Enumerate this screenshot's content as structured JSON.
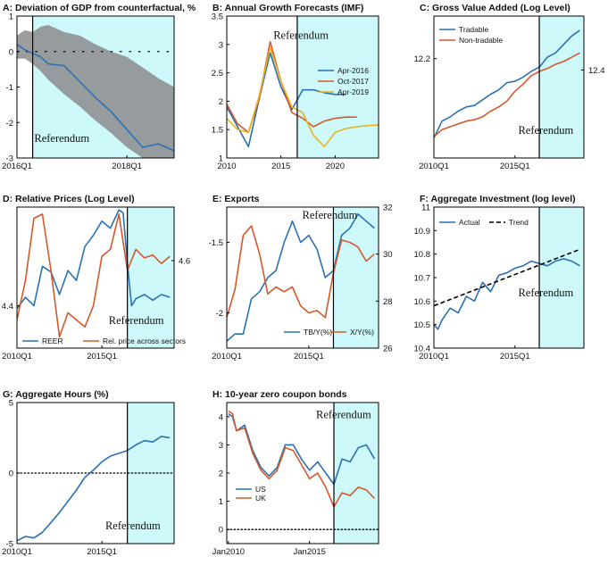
{
  "figure": {
    "colors": {
      "blue": "#2a71b5",
      "orange": "#d4592a",
      "yellow": "#e7b41f",
      "shade": "#cdf9fb",
      "band": "#8c8c8c",
      "black": "#000000"
    }
  },
  "chart_data": [
    {
      "type": "area",
      "title": "A: Deviation of GDP from counterfactual, %",
      "xlim": [
        0,
        10
      ],
      "ylim": [
        -3,
        1
      ],
      "yticks": [
        1,
        0,
        -1,
        -2,
        -3
      ],
      "xticks": [
        {
          "x": 0,
          "label": "2016Q1"
        },
        {
          "x": 7,
          "label": "2018Q1"
        }
      ],
      "shaded": [
        1,
        10
      ],
      "vline": 1,
      "hline": 0,
      "hline_style": "dotted-sparse",
      "annotations": [
        {
          "text": "Referendum",
          "x": 1.1,
          "y": -2.55
        }
      ],
      "band": {
        "x": [
          0,
          0.5,
          1,
          1.5,
          2,
          3,
          4,
          5,
          6,
          7,
          8,
          9,
          10
        ],
        "upper": [
          0.45,
          0.6,
          0.55,
          0.7,
          0.75,
          0.55,
          0.45,
          0.2,
          0.0,
          -0.15,
          -0.45,
          -0.75,
          -1.0
        ],
        "lower": [
          -0.2,
          -0.2,
          -0.35,
          -0.55,
          -0.8,
          -1.2,
          -1.55,
          -1.95,
          -2.3,
          -2.7,
          -3.0,
          -3.0,
          -3.0
        ]
      },
      "series": [
        {
          "color": "#2a71b5",
          "x": [
            0,
            0.5,
            1,
            1.5,
            2,
            3,
            4,
            5,
            6,
            7,
            8,
            9,
            10
          ],
          "y": [
            0.2,
            0.05,
            -0.05,
            -0.15,
            -0.35,
            -0.4,
            -0.85,
            -1.3,
            -1.7,
            -2.2,
            -2.7,
            -2.6,
            -2.8
          ]
        }
      ]
    },
    {
      "type": "line",
      "title": "B: Annual Growth Forecasts (IMF)",
      "xlim": [
        2010,
        2024
      ],
      "ylim": [
        1,
        3.5
      ],
      "yticks": [
        3.5,
        3,
        2.5,
        2,
        1.5,
        1
      ],
      "xticks": [
        {
          "x": 2010,
          "label": "2010"
        },
        {
          "x": 2015,
          "label": "2015"
        },
        {
          "x": 2020,
          "label": "2020"
        }
      ],
      "shaded": [
        2016.5,
        2024
      ],
      "vline": 2016.5,
      "annotations": [
        {
          "text": "Referendum",
          "x": 2014.3,
          "y": 3.1
        }
      ],
      "legend": {
        "position": "top-right"
      },
      "series": [
        {
          "name": "Apr-2016",
          "color": "#2a71b5",
          "x": [
            2010,
            2011,
            2012,
            2013,
            2014,
            2015,
            2016,
            2017,
            2018,
            2019,
            2020,
            2021
          ],
          "y": [
            1.9,
            1.55,
            1.2,
            2.05,
            2.85,
            2.25,
            1.85,
            2.2,
            2.2,
            2.15,
            2.12,
            2.12
          ]
        },
        {
          "name": "Oct-2017",
          "color": "#d4592a",
          "x": [
            2010,
            2011,
            2012,
            2013,
            2014,
            2015,
            2016,
            2017,
            2018,
            2019,
            2020,
            2021,
            2022
          ],
          "y": [
            1.95,
            1.6,
            1.45,
            2.05,
            3.05,
            2.35,
            1.8,
            1.7,
            1.55,
            1.65,
            1.7,
            1.72,
            1.72
          ]
        },
        {
          "name": "Apr-2019",
          "color": "#e7b41f",
          "x": [
            2010,
            2011,
            2012,
            2013,
            2014,
            2015,
            2016,
            2017,
            2018,
            2019,
            2020,
            2021,
            2022,
            2023,
            2024
          ],
          "y": [
            1.7,
            1.5,
            1.45,
            2.1,
            2.95,
            2.35,
            1.9,
            1.8,
            1.4,
            1.2,
            1.45,
            1.52,
            1.55,
            1.57,
            1.58
          ]
        }
      ]
    },
    {
      "type": "line",
      "title": "C: Gross Value Added (Log Level)",
      "xlim": [
        2010,
        2019.25
      ],
      "ylim": [
        0,
        1
      ],
      "yticks_left": [
        {
          "y": 0.7,
          "label": "12.2"
        }
      ],
      "yticks_right": [
        {
          "y": 0.62,
          "label": "12.4"
        }
      ],
      "xticks": [
        {
          "x": 2010,
          "label": "2010Q1"
        },
        {
          "x": 2015,
          "label": "2015Q1"
        }
      ],
      "shaded": [
        2016.5,
        2019.25
      ],
      "vline": 2016.5,
      "annotations": [
        {
          "text": "Referendum",
          "x": 2015.2,
          "y": 0.17
        }
      ],
      "legend": {
        "position": "top-left"
      },
      "series": [
        {
          "name": "Tradable",
          "color": "#2a71b5",
          "x": [
            2010,
            2010.5,
            2011,
            2011.5,
            2012,
            2012.5,
            2013,
            2013.5,
            2014,
            2014.5,
            2015,
            2015.5,
            2016,
            2016.5,
            2017,
            2017.5,
            2018,
            2018.5,
            2019
          ],
          "y": [
            0.14,
            0.26,
            0.29,
            0.33,
            0.36,
            0.37,
            0.41,
            0.45,
            0.48,
            0.53,
            0.54,
            0.57,
            0.61,
            0.64,
            0.71,
            0.74,
            0.8,
            0.86,
            0.9
          ]
        },
        {
          "name": "Non-tradable",
          "color": "#d4592a",
          "x": [
            2010,
            2010.5,
            2011,
            2011.5,
            2012,
            2012.5,
            2013,
            2013.5,
            2014,
            2014.5,
            2015,
            2015.5,
            2016,
            2016.5,
            2017,
            2017.5,
            2018,
            2018.5,
            2019
          ],
          "y": [
            0.15,
            0.2,
            0.22,
            0.24,
            0.26,
            0.27,
            0.29,
            0.33,
            0.36,
            0.4,
            0.47,
            0.52,
            0.58,
            0.61,
            0.63,
            0.66,
            0.68,
            0.71,
            0.74
          ]
        }
      ]
    },
    {
      "type": "line",
      "title": "D: Relative Prices (Log Level)",
      "xlim": [
        2010,
        2019.25
      ],
      "ylim": [
        0,
        1
      ],
      "yticks_left": [
        {
          "y": 0.3,
          "label": "4.4"
        }
      ],
      "yticks_right": [
        {
          "y": 0.62,
          "label": "4.6"
        }
      ],
      "xticks": [
        {
          "x": 2010,
          "label": "2010Q1"
        },
        {
          "x": 2015,
          "label": "2015Q1"
        }
      ],
      "shaded": [
        2016.5,
        2019.25
      ],
      "vline": 2016.5,
      "annotations": [
        {
          "text": "Referendum",
          "x": 2015.4,
          "y": 0.17
        }
      ],
      "legend": {
        "position": "bottom"
      },
      "series": [
        {
          "name": "REER",
          "color": "#2a71b5",
          "x": [
            2010,
            2010.5,
            2011,
            2011.5,
            2012,
            2012.5,
            2013,
            2013.5,
            2014,
            2014.5,
            2015,
            2015.5,
            2016,
            2016.25,
            2016.5,
            2016.75,
            2017,
            2017.5,
            2018,
            2018.5,
            2019
          ],
          "y": [
            0.28,
            0.36,
            0.3,
            0.58,
            0.54,
            0.38,
            0.55,
            0.48,
            0.72,
            0.8,
            0.9,
            0.85,
            0.98,
            0.96,
            0.6,
            0.3,
            0.35,
            0.38,
            0.34,
            0.38,
            0.36
          ]
        },
        {
          "name": "Rel. price across sectors",
          "color": "#d4592a",
          "x": [
            2010,
            2010.5,
            2011,
            2011.5,
            2012,
            2012.5,
            2013,
            2013.5,
            2014,
            2014.5,
            2015,
            2015.5,
            2016,
            2016.5,
            2017,
            2017.5,
            2018,
            2018.5,
            2019
          ],
          "y": [
            0.2,
            0.48,
            0.92,
            0.95,
            0.55,
            0.08,
            0.25,
            0.2,
            0.15,
            0.3,
            0.65,
            0.7,
            0.95,
            0.55,
            0.7,
            0.64,
            0.66,
            0.6,
            0.65
          ]
        }
      ]
    },
    {
      "type": "line",
      "title": "E: Exports",
      "xlim": [
        2010,
        2019.25
      ],
      "ylim_left": [
        -2.25,
        -1.25
      ],
      "ylim_right": [
        26,
        32
      ],
      "yticks_left": [
        -1.5,
        -2
      ],
      "yticks_right": [
        32,
        30,
        28,
        26
      ],
      "xticks": [
        {
          "x": 2010,
          "label": "2010Q1"
        },
        {
          "x": 2015,
          "label": "2015Q1"
        }
      ],
      "shaded": [
        2016.5,
        2019.25
      ],
      "vline": 2016.5,
      "annotations": [
        {
          "text": "Referendum",
          "x": 2014.6,
          "y_right": 31.5
        }
      ],
      "legend": {
        "position": "bottom-right"
      },
      "series": [
        {
          "name": "TB/Y(%)",
          "axis": "left",
          "color": "#2a71b5",
          "x": [
            2010,
            2010.5,
            2011,
            2011.5,
            2012,
            2012.5,
            2013,
            2013.5,
            2014,
            2014.5,
            2015,
            2015.5,
            2016,
            2016.5,
            2017,
            2017.5,
            2018,
            2018.5,
            2019
          ],
          "y": [
            -2.2,
            -2.15,
            -2.15,
            -1.9,
            -1.85,
            -1.75,
            -1.7,
            -1.5,
            -1.35,
            -1.5,
            -1.45,
            -1.55,
            -1.75,
            -1.7,
            -1.45,
            -1.4,
            -1.3,
            -1.35,
            -1.4
          ]
        },
        {
          "name": "X/Y(%)",
          "axis": "right",
          "color": "#d4592a",
          "x": [
            2010,
            2010.5,
            2011,
            2011.5,
            2012,
            2012.5,
            2013,
            2013.5,
            2014,
            2014.5,
            2015,
            2015.5,
            2016,
            2016.5,
            2017,
            2017.5,
            2018,
            2018.5,
            2019
          ],
          "y": [
            27.3,
            28.5,
            30.8,
            31.2,
            30.0,
            28.3,
            28.6,
            28.4,
            28.6,
            27.8,
            27.5,
            27.6,
            27.3,
            29.2,
            30.6,
            30.5,
            30.3,
            29.7,
            30.0
          ]
        }
      ]
    },
    {
      "type": "line",
      "title": "F: Aggregate Investment (log level)",
      "xlim": [
        2010,
        2019.25
      ],
      "ylim": [
        10.4,
        11
      ],
      "yticks": [
        11,
        10.9,
        10.8,
        10.7,
        10.6,
        10.5,
        10.4
      ],
      "xticks": [
        {
          "x": 2010,
          "label": "2010Q1"
        },
        {
          "x": 2015,
          "label": "2015Q1"
        }
      ],
      "shaded": [
        2016.5,
        2019.25
      ],
      "vline": 2016.5,
      "annotations": [
        {
          "text": "Referendum",
          "x": 2015.2,
          "y": 10.62
        }
      ],
      "legend": {
        "position": "top"
      },
      "series": [
        {
          "name": "Actual",
          "color": "#2a71b5",
          "x": [
            2010,
            2010.25,
            2010.5,
            2011,
            2011.5,
            2012,
            2012.5,
            2013,
            2013.5,
            2014,
            2014.5,
            2015,
            2015.5,
            2016,
            2016.5,
            2017,
            2017.5,
            2018,
            2018.5,
            2019
          ],
          "y": [
            10.5,
            10.48,
            10.52,
            10.57,
            10.55,
            10.62,
            10.6,
            10.68,
            10.64,
            10.71,
            10.72,
            10.74,
            10.75,
            10.77,
            10.76,
            10.75,
            10.77,
            10.78,
            10.77,
            10.75
          ]
        },
        {
          "name": "Trend",
          "color": "#000000",
          "dashed": true,
          "x": [
            2010,
            2019
          ],
          "y": [
            10.58,
            10.82
          ]
        }
      ]
    },
    {
      "type": "line",
      "title": "G: Aggregate Hours (%)",
      "xlim": [
        2010,
        2019.25
      ],
      "ylim": [
        -5,
        5
      ],
      "yticks": [
        5,
        0,
        -5
      ],
      "xticks": [
        {
          "x": 2010,
          "label": "2010Q1"
        },
        {
          "x": 2015,
          "label": "2015Q1"
        }
      ],
      "shaded": [
        2016.5,
        2019.25
      ],
      "vline": 2016.5,
      "hline": 0,
      "annotations": [
        {
          "text": "Referendum",
          "x": 2015.2,
          "y": -4.0
        }
      ],
      "series": [
        {
          "color": "#2a71b5",
          "x": [
            2010,
            2010.5,
            2011,
            2011.5,
            2012,
            2012.5,
            2013,
            2013.5,
            2014,
            2014.5,
            2015,
            2015.5,
            2016,
            2016.5,
            2017,
            2017.5,
            2018,
            2018.5,
            2019
          ],
          "y": [
            -4.8,
            -4.5,
            -4.6,
            -4.2,
            -3.5,
            -2.8,
            -2.0,
            -1.2,
            -0.3,
            0.2,
            0.8,
            1.2,
            1.4,
            1.6,
            2.0,
            2.3,
            2.2,
            2.6,
            2.5
          ]
        }
      ]
    },
    {
      "type": "line",
      "title": "H: 10-year zero coupon bonds",
      "xlim": [
        2009.9,
        2019.25
      ],
      "ylim": [
        -0.5,
        4.5
      ],
      "yticks": [
        4,
        3,
        2,
        1,
        0
      ],
      "xticks": [
        {
          "x": 2010,
          "label": "Jan2010"
        },
        {
          "x": 2015,
          "label": "Jan2015"
        }
      ],
      "shaded": [
        2016.5,
        2019.25
      ],
      "vline": 2016.5,
      "hline": 0,
      "annotations": [
        {
          "text": "Referendum",
          "x": 2015.4,
          "y": 3.95
        }
      ],
      "legend": {
        "position": "bottom-left"
      },
      "series": [
        {
          "name": "US",
          "color": "#2a71b5",
          "x": [
            2010,
            2010.25,
            2010.5,
            2011,
            2011.5,
            2012,
            2012.5,
            2013,
            2013.5,
            2014,
            2014.5,
            2015,
            2015.5,
            2016,
            2016.5,
            2017,
            2017.5,
            2018,
            2018.5,
            2019
          ],
          "y": [
            4.1,
            4.0,
            3.5,
            3.7,
            2.8,
            2.2,
            1.9,
            2.2,
            3.0,
            3.0,
            2.5,
            2.1,
            2.4,
            2.0,
            1.6,
            2.5,
            2.4,
            2.9,
            3.0,
            2.5
          ]
        },
        {
          "name": "UK",
          "color": "#d4592a",
          "x": [
            2010,
            2010.25,
            2010.5,
            2011,
            2011.5,
            2012,
            2012.5,
            2013,
            2013.5,
            2014,
            2014.5,
            2015,
            2015.5,
            2016,
            2016.5,
            2017,
            2017.5,
            2018,
            2018.5,
            2019
          ],
          "y": [
            4.2,
            4.1,
            3.5,
            3.6,
            2.7,
            2.1,
            1.8,
            2.1,
            2.9,
            2.8,
            2.3,
            1.8,
            2.0,
            1.5,
            0.8,
            1.3,
            1.2,
            1.5,
            1.4,
            1.1
          ]
        }
      ]
    }
  ]
}
